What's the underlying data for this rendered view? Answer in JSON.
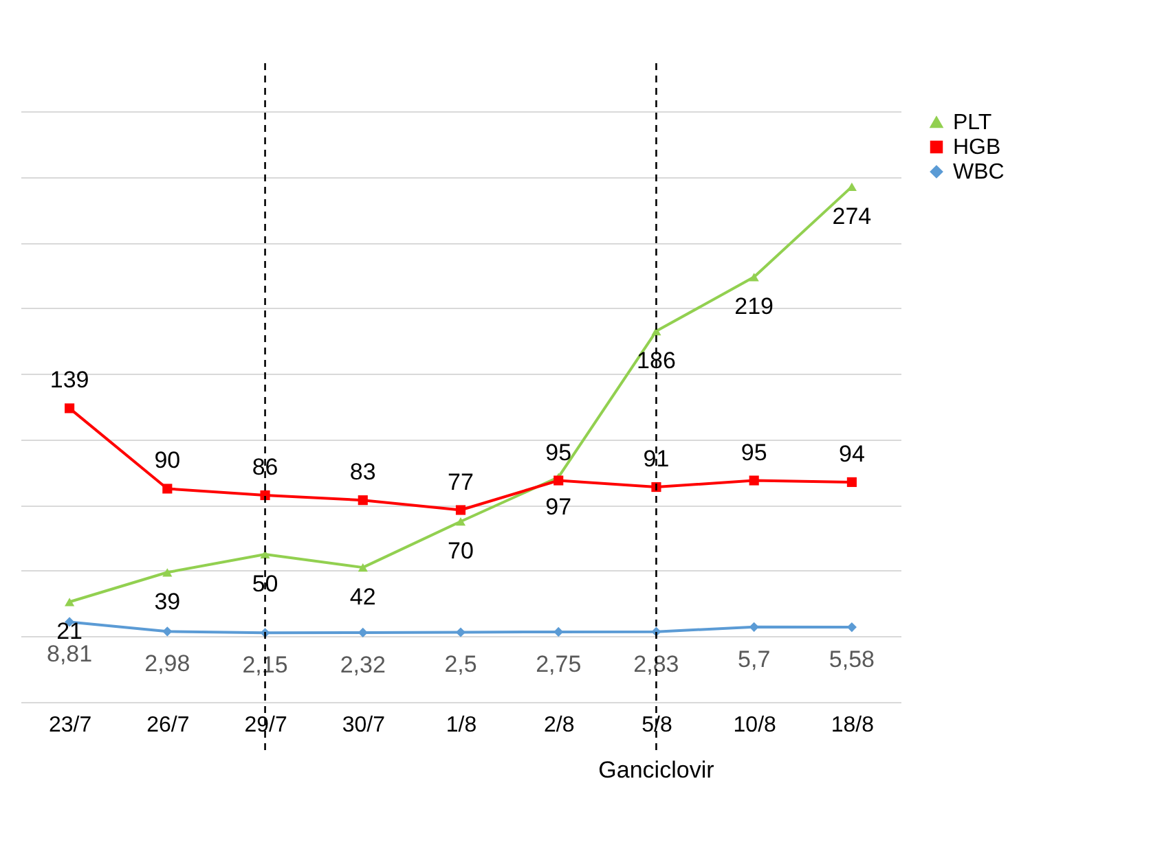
{
  "chart_data": {
    "type": "line",
    "categories": [
      "23/7",
      "26/7",
      "29/7",
      "30/7",
      "1/8",
      "2/8",
      "5/8",
      "10/8",
      "18/8"
    ],
    "series": [
      {
        "name": "PLT",
        "color": "#92d050",
        "marker": "triangle",
        "values": [
          21,
          39,
          50,
          42,
          70,
          97,
          186,
          219,
          274
        ]
      },
      {
        "name": "HGB",
        "color": "#ff0000",
        "marker": "square",
        "values": [
          139,
          90,
          86,
          83,
          77,
          95,
          91,
          95,
          94
        ]
      },
      {
        "name": "WBC",
        "color": "#5b9bd5",
        "marker": "diamond",
        "values": [
          8.81,
          2.98,
          2.15,
          2.32,
          2.5,
          2.75,
          2.83,
          5.7,
          5.58
        ],
        "value_labels": [
          "8,81",
          "2,98",
          "2,15",
          "2,32",
          "2,5",
          "2,75",
          "2,83",
          "5,7",
          "5,58"
        ]
      }
    ],
    "ylim": [
      -40,
      320
    ],
    "line_style": "solid",
    "yticks": [
      {
        "value": -40,
        "label": null
      },
      {
        "value": 0,
        "label": null
      },
      {
        "value": 40,
        "label": null
      },
      {
        "value": 80,
        "label": null
      },
      {
        "value": 120,
        "label": null
      },
      {
        "value": 160,
        "label": null
      },
      {
        "value": 200,
        "label": null
      },
      {
        "value": 240,
        "label": null
      },
      {
        "value": 280,
        "label": null
      },
      {
        "value": 320,
        "label": null
      }
    ],
    "tick_labels": "x",
    "grid": "y",
    "legend": "right",
    "data_labels": true,
    "ref_lines": [
      {
        "axis": "x",
        "value": "29/7",
        "label": null,
        "color": "#000000",
        "line_style": "dashed"
      },
      {
        "axis": "x",
        "value": "5/8",
        "label": "Ganciclovir",
        "color": "#000000",
        "line_style": "dashed"
      }
    ]
  }
}
